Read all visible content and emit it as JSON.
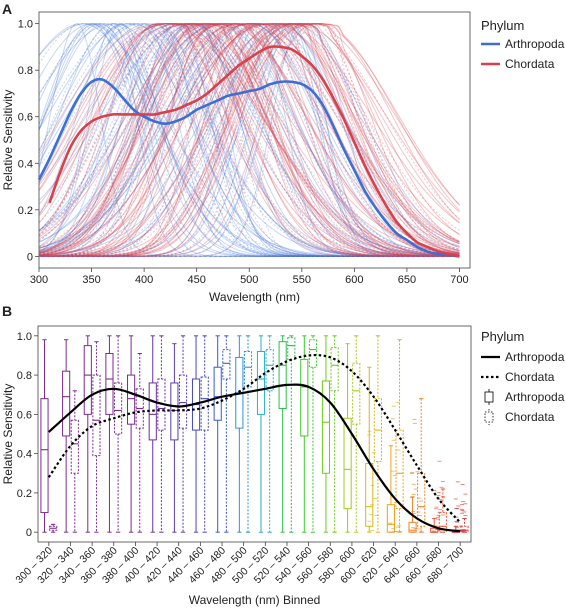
{
  "chart_data": [
    {
      "panel_label": "A",
      "type": "line",
      "xlabel": "Wavelength (nm)",
      "ylabel": "Relative Sensitivity",
      "xlim": [
        300,
        710
      ],
      "ylim": [
        -0.05,
        1.05
      ],
      "xticks": [
        300,
        350,
        400,
        450,
        500,
        550,
        600,
        650,
        700
      ],
      "yticks": [
        0,
        0.2,
        0.4,
        0.6,
        0.8,
        1.0
      ],
      "ytick_labels": [
        "0",
        "0.2",
        "0.4",
        "0.6",
        "0.8",
        "1.0"
      ],
      "grid": false,
      "legend": {
        "title": "Phylum",
        "position": "right",
        "entries": [
          "Arthropoda",
          "Chordata"
        ]
      },
      "series": [
        {
          "name": "Arthropoda",
          "color": "#3a6fd8",
          "x": [
            300,
            310,
            320,
            330,
            340,
            350,
            360,
            370,
            380,
            390,
            400,
            410,
            420,
            430,
            440,
            450,
            460,
            470,
            480,
            490,
            500,
            510,
            520,
            530,
            540,
            550,
            560,
            570,
            580,
            590,
            600,
            610,
            620,
            630,
            640,
            650,
            660,
            670,
            680,
            690,
            700
          ],
          "y": [
            0.33,
            0.42,
            0.52,
            0.62,
            0.7,
            0.75,
            0.76,
            0.73,
            0.68,
            0.63,
            0.6,
            0.58,
            0.57,
            0.58,
            0.6,
            0.63,
            0.65,
            0.67,
            0.69,
            0.7,
            0.71,
            0.72,
            0.74,
            0.75,
            0.75,
            0.74,
            0.71,
            0.65,
            0.56,
            0.46,
            0.37,
            0.28,
            0.21,
            0.15,
            0.1,
            0.07,
            0.04,
            0.02,
            0.01,
            0.005,
            0.0
          ]
        },
        {
          "name": "Chordata",
          "color": "#d8404c",
          "x": [
            310,
            320,
            330,
            340,
            350,
            360,
            370,
            380,
            390,
            400,
            410,
            420,
            430,
            440,
            450,
            460,
            470,
            480,
            490,
            500,
            510,
            520,
            530,
            540,
            550,
            560,
            570,
            580,
            590,
            600,
            610,
            620,
            630,
            640,
            650,
            660,
            670,
            680,
            690,
            700
          ],
          "y": [
            0.23,
            0.36,
            0.47,
            0.54,
            0.58,
            0.6,
            0.61,
            0.61,
            0.61,
            0.61,
            0.61,
            0.62,
            0.63,
            0.65,
            0.67,
            0.7,
            0.74,
            0.78,
            0.82,
            0.85,
            0.88,
            0.9,
            0.9,
            0.89,
            0.86,
            0.82,
            0.76,
            0.68,
            0.59,
            0.49,
            0.39,
            0.3,
            0.22,
            0.15,
            0.1,
            0.06,
            0.04,
            0.02,
            0.01,
            0.0
          ]
        }
      ]
    },
    {
      "panel_label": "B",
      "type": "box",
      "xlabel": "Wavelength (nm) Binned",
      "ylabel": "Relative Sensitivity",
      "ylim": [
        -0.05,
        1.05
      ],
      "yticks": [
        0,
        0.2,
        0.4,
        0.6,
        0.8,
        1.0
      ],
      "ytick_labels": [
        "0",
        "0.2",
        "0.4",
        "0.6",
        "0.8",
        "1.0"
      ],
      "categories": [
        "300 – 320",
        "320 – 340",
        "340 – 360",
        "360 – 380",
        "380 – 400",
        "400 – 420",
        "420 – 440",
        "440 – 460",
        "460 – 480",
        "480 – 500",
        "500 – 520",
        "520 – 540",
        "540 – 560",
        "560 – 580",
        "580 – 600",
        "600 – 620",
        "620 – 640",
        "640 – 660",
        "660 – 680",
        "680 – 700"
      ],
      "bin_colors": [
        "#7b2c8f",
        "#7b2c8f",
        "#7b2c8f",
        "#7b2c8f",
        "#7b2c8f",
        "#6a2fa2",
        "#5b3bb2",
        "#4449c2",
        "#3a58d2",
        "#2f8fe0",
        "#25b0c4",
        "#2ebf4a",
        "#3ccb2a",
        "#6dcc1e",
        "#a6c81a",
        "#d6b81a",
        "#efa21c",
        "#f0822a",
        "#ee5a3c",
        "#dd3a3a"
      ],
      "grid": false,
      "legend": {
        "title": "Phylum",
        "position": "right",
        "entries": [
          {
            "label": "Arthropoda",
            "kind": "solid-line"
          },
          {
            "label": "Chordata",
            "kind": "dotted-line"
          },
          {
            "label": "Arthropoda",
            "kind": "solid-box"
          },
          {
            "label": "Chordata",
            "kind": "dashed-box"
          }
        ]
      },
      "series": [
        {
          "name": "Arthropoda",
          "line_style": "solid",
          "mean_curve": [
            0.51,
            0.61,
            0.7,
            0.73,
            0.7,
            0.66,
            0.64,
            0.66,
            0.69,
            0.71,
            0.73,
            0.75,
            0.74,
            0.66,
            0.5,
            0.32,
            0.17,
            0.07,
            0.02,
            0.005
          ],
          "boxes": [
            {
              "min": 0.0,
              "q1": 0.1,
              "median": 0.42,
              "q3": 0.68,
              "max": 0.98
            },
            {
              "min": 0.0,
              "q1": 0.49,
              "median": 0.69,
              "q3": 0.82,
              "max": 0.98
            },
            {
              "min": 0.0,
              "q1": 0.6,
              "median": 0.8,
              "q3": 0.95,
              "max": 1.0
            },
            {
              "min": 0.0,
              "q1": 0.6,
              "median": 0.78,
              "q3": 0.91,
              "max": 1.0
            },
            {
              "min": 0.0,
              "q1": 0.55,
              "median": 0.68,
              "q3": 0.8,
              "max": 1.0
            },
            {
              "min": 0.0,
              "q1": 0.47,
              "median": 0.6,
              "q3": 0.76,
              "max": 1.0
            },
            {
              "min": 0.0,
              "q1": 0.47,
              "median": 0.62,
              "q3": 0.76,
              "max": 0.96
            },
            {
              "min": 0.0,
              "q1": 0.52,
              "median": 0.65,
              "q3": 0.78,
              "max": 1.0
            },
            {
              "min": 0.0,
              "q1": 0.57,
              "median": 0.69,
              "q3": 0.84,
              "max": 1.0
            },
            {
              "min": 0.0,
              "q1": 0.53,
              "median": 0.71,
              "q3": 0.89,
              "max": 1.0
            },
            {
              "min": 0.0,
              "q1": 0.6,
              "median": 0.78,
              "q3": 0.92,
              "max": 1.0
            },
            {
              "min": 0.0,
              "q1": 0.63,
              "median": 0.85,
              "q3": 0.97,
              "max": 1.0
            },
            {
              "min": 0.0,
              "q1": 0.49,
              "median": 0.74,
              "q3": 0.88,
              "max": 1.0
            },
            {
              "min": 0.0,
              "q1": 0.3,
              "median": 0.56,
              "q3": 0.77,
              "max": 1.0
            },
            {
              "min": 0.0,
              "q1": 0.12,
              "median": 0.32,
              "q3": 0.58,
              "max": 0.96
            },
            {
              "min": 0.0,
              "q1": 0.03,
              "median": 0.13,
              "q3": 0.35,
              "max": 0.84
            },
            {
              "min": 0.0,
              "q1": 0.0,
              "median": 0.04,
              "q3": 0.14,
              "max": 0.44
            },
            {
              "min": 0.0,
              "q1": 0.0,
              "median": 0.01,
              "q3": 0.05,
              "max": 0.18
            },
            {
              "min": 0.0,
              "q1": 0.0,
              "median": 0.0,
              "q3": 0.02,
              "max": 0.07
            },
            {
              "min": 0.0,
              "q1": 0.0,
              "median": 0.0,
              "q3": 0.01,
              "max": 0.03
            }
          ]
        },
        {
          "name": "Chordata",
          "line_style": "dotted",
          "mean_curve": [
            0.28,
            0.44,
            0.54,
            0.58,
            0.61,
            0.62,
            0.62,
            0.63,
            0.67,
            0.73,
            0.81,
            0.87,
            0.9,
            0.89,
            0.82,
            0.69,
            0.52,
            0.34,
            0.17,
            0.05
          ],
          "boxes": [
            {
              "min": 0.0,
              "q1": 0.01,
              "median": 0.02,
              "q3": 0.03,
              "max": 0.04
            },
            {
              "min": 0.0,
              "q1": 0.3,
              "median": 0.45,
              "q3": 0.57,
              "max": 0.72
            },
            {
              "min": 0.0,
              "q1": 0.39,
              "median": 0.57,
              "q3": 0.8,
              "max": 0.97
            },
            {
              "min": 0.0,
              "q1": 0.5,
              "median": 0.62,
              "q3": 0.76,
              "max": 1.0
            },
            {
              "min": 0.0,
              "q1": 0.53,
              "median": 0.63,
              "q3": 0.73,
              "max": 0.91
            },
            {
              "min": 0.0,
              "q1": 0.52,
              "median": 0.63,
              "q3": 0.78,
              "max": 1.0
            },
            {
              "min": 0.0,
              "q1": 0.53,
              "median": 0.66,
              "q3": 0.8,
              "max": 1.0
            },
            {
              "min": 0.0,
              "q1": 0.52,
              "median": 0.68,
              "q3": 0.79,
              "max": 1.0
            },
            {
              "min": 0.0,
              "q1": 0.78,
              "median": 0.86,
              "q3": 0.93,
              "max": 1.0
            },
            {
              "min": 0.0,
              "q1": 0.74,
              "median": 0.84,
              "q3": 0.92,
              "max": 1.0
            },
            {
              "min": 0.0,
              "q1": 0.72,
              "median": 0.85,
              "q3": 0.93,
              "max": 1.0
            },
            {
              "min": 0.0,
              "q1": 0.88,
              "median": 0.95,
              "q3": 0.99,
              "max": 1.0
            },
            {
              "min": 0.0,
              "q1": 0.84,
              "median": 0.93,
              "q3": 0.98,
              "max": 1.0
            },
            {
              "min": 0.0,
              "q1": 0.72,
              "median": 0.85,
              "q3": 0.94,
              "max": 1.0
            },
            {
              "min": 0.0,
              "q1": 0.55,
              "median": 0.72,
              "q3": 0.86,
              "max": 1.0
            },
            {
              "min": 0.0,
              "q1": 0.36,
              "median": 0.52,
              "q3": 0.68,
              "max": 1.0
            },
            {
              "min": 0.0,
              "q1": 0.12,
              "median": 0.3,
              "q3": 0.52,
              "max": 0.98
            },
            {
              "min": 0.0,
              "q1": 0.03,
              "median": 0.13,
              "q3": 0.3,
              "max": 0.68
            },
            {
              "min": 0.0,
              "q1": 0.0,
              "median": 0.03,
              "q3": 0.1,
              "max": 0.22
            },
            {
              "min": 0.0,
              "q1": 0.0,
              "median": 0.01,
              "q3": 0.03,
              "max": 0.07
            }
          ]
        }
      ]
    }
  ]
}
